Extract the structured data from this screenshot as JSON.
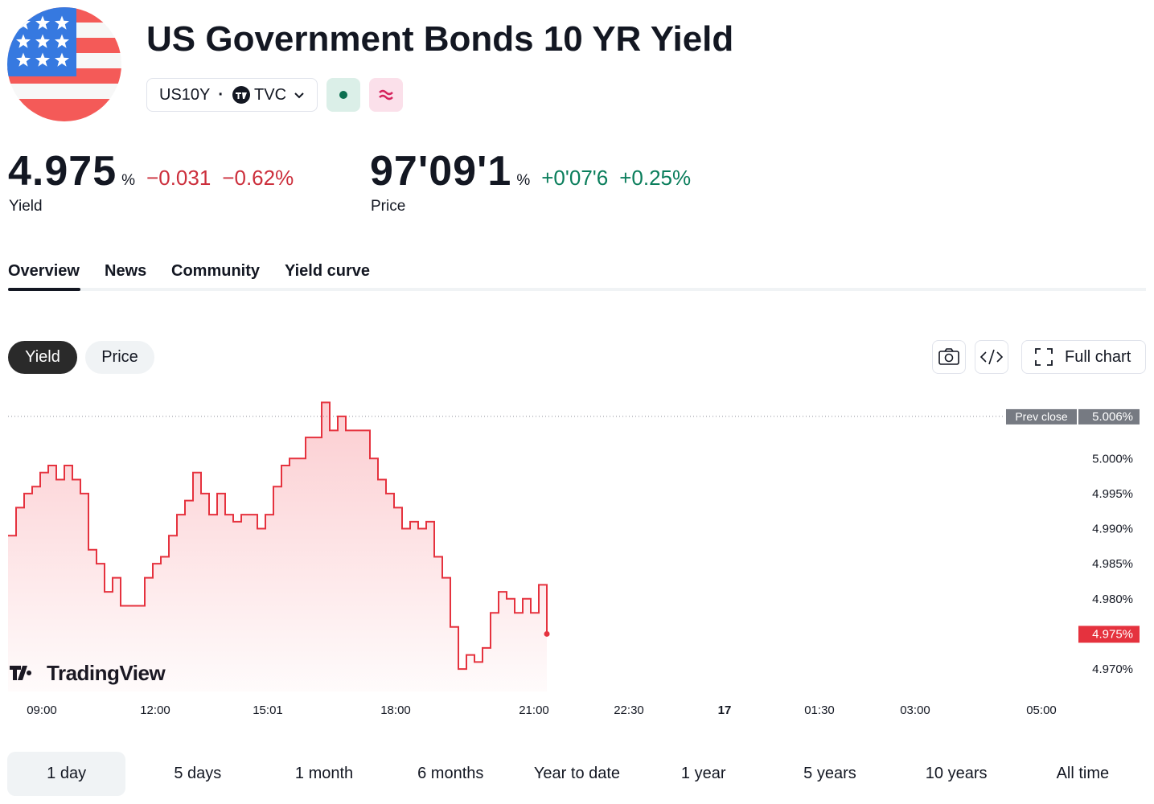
{
  "header": {
    "title": "US Government Bonds 10 YR Yield",
    "symbol": "US10Y",
    "exchange": "TVC"
  },
  "quotes": [
    {
      "value": "4.975",
      "unit": "%",
      "change": "−0.031",
      "change_pct": "−0.62%",
      "label": "Yield",
      "direction": "down"
    },
    {
      "value": "97'09'1",
      "unit": "%",
      "change": "+0'07'6",
      "change_pct": "+0.25%",
      "label": "Price",
      "direction": "up"
    }
  ],
  "tabs": {
    "items": [
      "Overview",
      "News",
      "Community",
      "Yield curve"
    ],
    "active": 0
  },
  "toggle": {
    "items": [
      "Yield",
      "Price"
    ],
    "active": 0
  },
  "toolbar": {
    "full_chart": "Full chart"
  },
  "chart_data": {
    "type": "line",
    "color": "#e5323e",
    "watermark": "TradingView",
    "x": [
      0,
      1,
      2,
      3,
      4,
      5,
      6,
      7,
      8,
      9,
      10,
      11,
      12,
      13,
      14,
      15,
      16,
      17,
      18,
      19,
      20,
      21,
      22,
      23,
      24,
      25,
      26,
      27,
      28,
      29,
      30,
      31,
      32,
      33,
      34,
      35,
      36,
      37,
      38,
      39,
      40,
      41,
      42,
      43,
      44,
      45,
      46,
      47,
      48,
      49,
      50,
      51,
      52,
      53,
      54,
      55,
      56,
      57,
      58,
      59,
      60,
      61,
      62,
      63,
      64,
      65,
      66,
      67
    ],
    "series": [
      {
        "name": "Yield",
        "color": "#e5323e",
        "values": [
          4.989,
          4.993,
          4.995,
          4.996,
          4.998,
          4.999,
          4.997,
          4.999,
          4.997,
          4.995,
          4.987,
          4.985,
          4.981,
          4.983,
          4.979,
          4.979,
          4.979,
          4.983,
          4.985,
          4.986,
          4.989,
          4.992,
          4.994,
          4.998,
          4.995,
          4.992,
          4.995,
          4.992,
          4.991,
          4.992,
          4.992,
          4.99,
          4.992,
          4.996,
          4.999,
          5.0,
          5.0,
          5.003,
          5.003,
          5.008,
          5.004,
          5.006,
          5.004,
          5.004,
          5.004,
          5.0,
          4.997,
          4.995,
          4.993,
          4.99,
          4.991,
          4.99,
          4.991,
          4.986,
          4.983,
          4.976,
          4.97,
          4.972,
          4.971,
          4.973,
          4.978,
          4.981,
          4.98,
          4.978,
          4.98,
          4.978,
          4.982,
          4.975
        ]
      }
    ],
    "xlim": [
      0,
      132
    ],
    "xticks": [
      {
        "value": 4.2,
        "label": "09:00"
      },
      {
        "value": 18.3,
        "label": "12:00"
      },
      {
        "value": 32.3,
        "label": "15:01"
      },
      {
        "value": 48.2,
        "label": "18:00"
      },
      {
        "value": 65.4,
        "label": "21:00"
      },
      {
        "value": 77.2,
        "label": "22:30"
      },
      {
        "value": 89.1,
        "label": "17"
      },
      {
        "value": 100.9,
        "label": "01:30"
      },
      {
        "value": 112.8,
        "label": "03:00"
      },
      {
        "value": 128.5,
        "label": "05:00"
      }
    ],
    "ylim": [
      4.9668,
      5.0092
    ],
    "yticks": [
      {
        "value": 4.97,
        "label": "4.970%"
      },
      {
        "value": 4.975,
        "label": "4.975%"
      },
      {
        "value": 4.98,
        "label": "4.980%"
      },
      {
        "value": 4.985,
        "label": "4.985%"
      },
      {
        "value": 4.99,
        "label": "4.990%"
      },
      {
        "value": 4.995,
        "label": "4.995%"
      },
      {
        "value": 5.0,
        "label": "5.000%"
      }
    ],
    "prev_close": {
      "name": "Prev close",
      "value": 5.006,
      "label": "5.006%"
    },
    "last": {
      "value": 4.975,
      "label": "4.975%"
    }
  },
  "ranges": {
    "items": [
      "1 day",
      "5 days",
      "1 month",
      "6 months",
      "Year to date",
      "1 year",
      "5 years",
      "10 years",
      "All time"
    ],
    "active": 0
  }
}
